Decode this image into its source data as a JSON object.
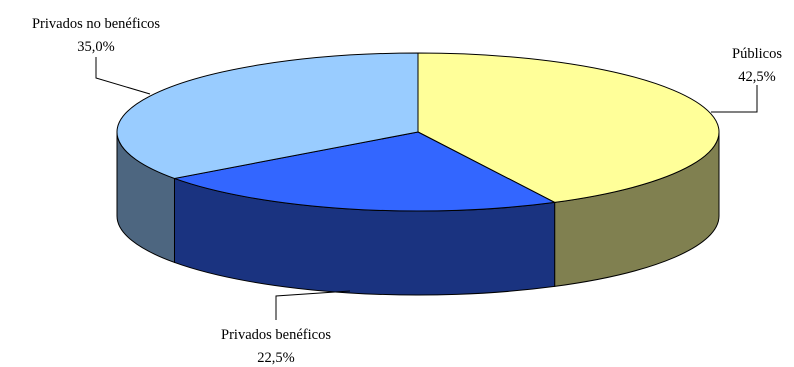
{
  "chart_data": {
    "type": "pie",
    "style": "3d",
    "slices": [
      {
        "name": "Públicos",
        "value": 42.5,
        "label": "42,5%",
        "top_color": "#FFFF99",
        "side_color": "#808050"
      },
      {
        "name": "Privados benéficos",
        "value": 22.5,
        "label": "22,5%",
        "top_color": "#3366FF",
        "side_color": "#1A3380"
      },
      {
        "name": "Privados no benéficos",
        "value": 35.0,
        "label": "35,0%",
        "top_color": "#99CCFF",
        "side_color": "#4D6680"
      }
    ],
    "edge_color": "#000000",
    "title": ""
  }
}
